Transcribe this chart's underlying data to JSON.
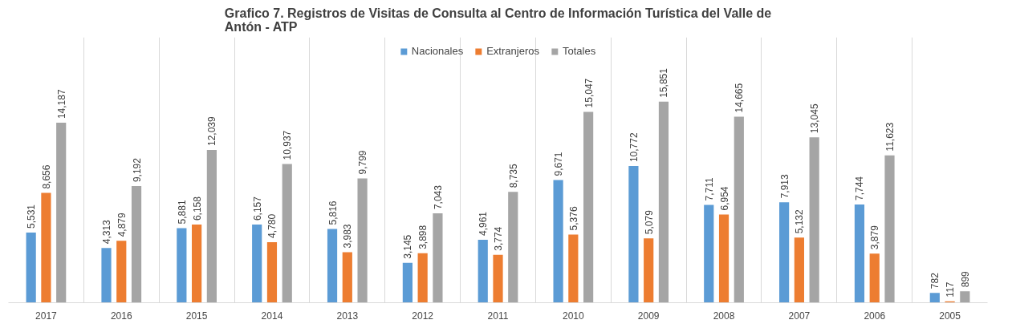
{
  "chart_data": {
    "type": "bar",
    "title": "Grafico 7. Registros de Visitas de Consulta al Centro de Información Turística del Valle de Antón - ATP",
    "categories": [
      "2017",
      "2016",
      "2015",
      "2014",
      "2013",
      "2012",
      "2011",
      "2010",
      "2009",
      "2008",
      "2007",
      "2006",
      "2005"
    ],
    "series": [
      {
        "name": "Nacionales",
        "color": "#5b9bd5",
        "values": [
          5531,
          4313,
          5881,
          6157,
          5816,
          3145,
          4961,
          9671,
          10772,
          7711,
          7913,
          7744,
          782
        ],
        "value_labels": [
          "5,531",
          "4,313",
          "5,881",
          "6,157",
          "5,816",
          "3,145",
          "4,961",
          "9,671",
          "10,772",
          "7,711",
          "7,913",
          "7,744",
          "782"
        ]
      },
      {
        "name": "Extranjeros",
        "color": "#ed7d31",
        "values": [
          8656,
          4879,
          6158,
          4780,
          3983,
          3898,
          3774,
          5376,
          5079,
          6954,
          5132,
          3879,
          117
        ],
        "value_labels": [
          "8,656",
          "4,879",
          "6,158",
          "4,780",
          "3,983",
          "3,898",
          "3,774",
          "5,376",
          "5,079",
          "6,954",
          "5,132",
          "3,879",
          "117"
        ]
      },
      {
        "name": "Totales",
        "color": "#a5a5a5",
        "values": [
          14187,
          9192,
          12039,
          10937,
          9799,
          7043,
          8735,
          15047,
          15851,
          14665,
          13045,
          11623,
          899
        ],
        "value_labels": [
          "14,187",
          "9,192",
          "12,039",
          "10,937",
          "9,799",
          "7,043",
          "8,735",
          "15,047",
          "15,851",
          "14,665",
          "13,045",
          "11,623",
          "899"
        ]
      }
    ],
    "legend": "top",
    "grid": "x"
  }
}
